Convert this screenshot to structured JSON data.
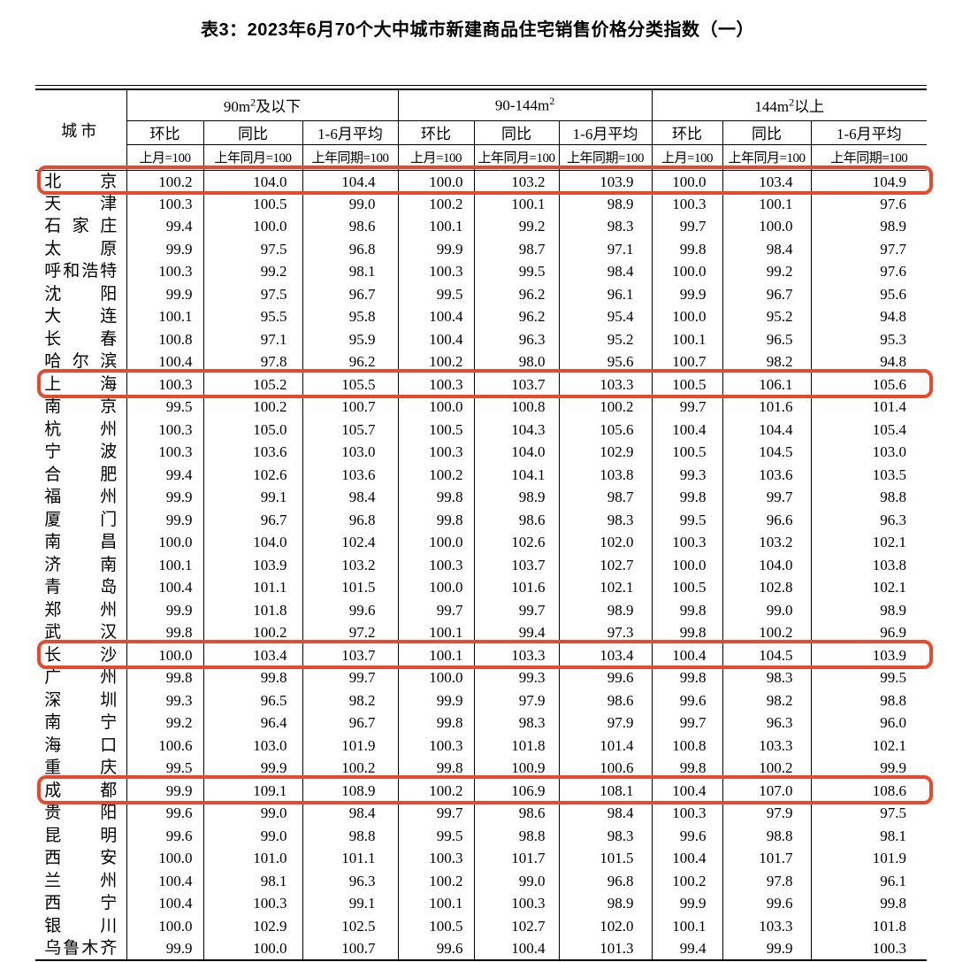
{
  "title": "表3：2023年6月70个大中城市新建商品住宅销售价格分类指数（一）",
  "table": {
    "city_header": "城市",
    "groups": [
      {
        "prefix": "90m",
        "sup": "2",
        "suffix": "及以下"
      },
      {
        "prefix": "90-144m",
        "sup": "2",
        "suffix": ""
      },
      {
        "prefix": "144m",
        "sup": "2",
        "suffix": "以上"
      }
    ],
    "metric_headers": [
      "环比",
      "同比",
      "1-6月平均"
    ],
    "base_headers": [
      "上月=100",
      "上年同月=100",
      "上年同期=100"
    ],
    "highlight_color": "#e5492e",
    "highlighted_cities": [
      "北京",
      "上海",
      "长沙",
      "成都"
    ],
    "rows": [
      {
        "city": "北京",
        "values": [
          "100.2",
          "104.0",
          "104.4",
          "100.0",
          "103.2",
          "103.9",
          "100.0",
          "103.4",
          "104.9"
        ]
      },
      {
        "city": "天津",
        "values": [
          "100.3",
          "100.5",
          "99.0",
          "100.2",
          "100.1",
          "98.9",
          "100.3",
          "100.1",
          "97.6"
        ]
      },
      {
        "city": "石家庄",
        "values": [
          "99.4",
          "100.0",
          "98.6",
          "100.1",
          "99.2",
          "98.3",
          "99.7",
          "100.0",
          "98.9"
        ]
      },
      {
        "city": "太原",
        "values": [
          "99.9",
          "97.5",
          "96.8",
          "99.9",
          "98.7",
          "97.1",
          "99.8",
          "98.4",
          "97.7"
        ]
      },
      {
        "city": "呼和浩特",
        "values": [
          "100.3",
          "99.2",
          "98.1",
          "100.3",
          "99.5",
          "98.4",
          "100.0",
          "99.2",
          "97.6"
        ]
      },
      {
        "city": "沈阳",
        "values": [
          "99.9",
          "97.5",
          "96.7",
          "99.5",
          "96.2",
          "96.1",
          "99.9",
          "96.7",
          "95.6"
        ]
      },
      {
        "city": "大连",
        "values": [
          "100.1",
          "95.5",
          "95.8",
          "100.4",
          "96.2",
          "95.4",
          "100.0",
          "95.2",
          "94.8"
        ]
      },
      {
        "city": "长春",
        "values": [
          "100.8",
          "97.1",
          "95.9",
          "100.4",
          "96.3",
          "95.2",
          "100.1",
          "96.5",
          "95.3"
        ]
      },
      {
        "city": "哈尔滨",
        "values": [
          "100.4",
          "97.8",
          "96.2",
          "100.2",
          "98.0",
          "95.6",
          "100.7",
          "98.2",
          "94.8"
        ]
      },
      {
        "city": "上海",
        "values": [
          "100.3",
          "105.2",
          "105.5",
          "100.3",
          "103.7",
          "103.3",
          "100.5",
          "106.1",
          "105.6"
        ]
      },
      {
        "city": "南京",
        "values": [
          "99.5",
          "100.2",
          "100.7",
          "100.0",
          "100.8",
          "100.2",
          "99.7",
          "101.6",
          "101.4"
        ]
      },
      {
        "city": "杭州",
        "values": [
          "100.3",
          "105.0",
          "105.7",
          "100.5",
          "104.3",
          "105.6",
          "100.4",
          "104.4",
          "105.4"
        ]
      },
      {
        "city": "宁波",
        "values": [
          "100.3",
          "103.6",
          "103.0",
          "100.3",
          "104.0",
          "102.9",
          "100.5",
          "104.5",
          "103.0"
        ]
      },
      {
        "city": "合肥",
        "values": [
          "99.4",
          "102.6",
          "103.6",
          "100.2",
          "104.1",
          "103.8",
          "99.3",
          "103.6",
          "103.5"
        ]
      },
      {
        "city": "福州",
        "values": [
          "99.9",
          "99.1",
          "98.4",
          "99.8",
          "98.9",
          "98.7",
          "99.8",
          "99.7",
          "98.8"
        ]
      },
      {
        "city": "厦门",
        "values": [
          "99.9",
          "96.7",
          "96.8",
          "99.8",
          "98.6",
          "98.3",
          "99.5",
          "96.6",
          "96.3"
        ]
      },
      {
        "city": "南昌",
        "values": [
          "100.0",
          "104.0",
          "102.4",
          "100.0",
          "102.6",
          "102.0",
          "100.3",
          "103.2",
          "102.1"
        ]
      },
      {
        "city": "济南",
        "values": [
          "100.1",
          "103.9",
          "103.2",
          "100.3",
          "103.7",
          "102.7",
          "100.0",
          "104.0",
          "103.8"
        ]
      },
      {
        "city": "青岛",
        "values": [
          "100.4",
          "101.1",
          "101.5",
          "100.0",
          "101.6",
          "102.1",
          "100.5",
          "102.8",
          "102.1"
        ]
      },
      {
        "city": "郑州",
        "values": [
          "99.9",
          "101.8",
          "99.6",
          "99.7",
          "99.7",
          "98.9",
          "99.8",
          "99.0",
          "98.9"
        ]
      },
      {
        "city": "武汉",
        "values": [
          "99.8",
          "100.2",
          "97.2",
          "100.1",
          "99.4",
          "97.3",
          "99.8",
          "100.2",
          "96.9"
        ]
      },
      {
        "city": "长沙",
        "values": [
          "100.0",
          "103.4",
          "103.7",
          "100.1",
          "103.3",
          "103.4",
          "100.4",
          "104.5",
          "103.9"
        ]
      },
      {
        "city": "广州",
        "values": [
          "99.8",
          "99.8",
          "99.7",
          "100.0",
          "99.3",
          "99.6",
          "99.8",
          "98.3",
          "99.5"
        ]
      },
      {
        "city": "深圳",
        "values": [
          "99.3",
          "96.5",
          "98.2",
          "99.9",
          "97.9",
          "98.6",
          "99.6",
          "98.2",
          "98.8"
        ]
      },
      {
        "city": "南宁",
        "values": [
          "99.2",
          "96.4",
          "96.7",
          "99.8",
          "98.3",
          "97.9",
          "99.7",
          "96.3",
          "96.0"
        ]
      },
      {
        "city": "海口",
        "values": [
          "100.6",
          "103.0",
          "101.9",
          "100.3",
          "101.8",
          "101.4",
          "100.8",
          "103.3",
          "102.1"
        ]
      },
      {
        "city": "重庆",
        "values": [
          "99.5",
          "99.9",
          "100.2",
          "99.8",
          "100.9",
          "100.6",
          "99.8",
          "100.2",
          "99.9"
        ]
      },
      {
        "city": "成都",
        "values": [
          "99.9",
          "109.1",
          "108.9",
          "100.2",
          "106.9",
          "108.1",
          "100.4",
          "107.0",
          "108.6"
        ]
      },
      {
        "city": "贵阳",
        "values": [
          "99.6",
          "99.0",
          "98.4",
          "99.7",
          "98.6",
          "98.4",
          "100.3",
          "97.9",
          "97.5"
        ]
      },
      {
        "city": "昆明",
        "values": [
          "99.6",
          "99.0",
          "98.8",
          "99.5",
          "98.8",
          "98.3",
          "99.6",
          "98.8",
          "98.1"
        ]
      },
      {
        "city": "西安",
        "values": [
          "100.0",
          "101.0",
          "101.1",
          "100.3",
          "101.7",
          "101.5",
          "100.4",
          "101.7",
          "101.9"
        ]
      },
      {
        "city": "兰州",
        "values": [
          "100.4",
          "98.1",
          "96.3",
          "100.2",
          "99.0",
          "96.8",
          "100.2",
          "97.8",
          "96.1"
        ]
      },
      {
        "city": "西宁",
        "values": [
          "100.4",
          "100.3",
          "99.1",
          "100.1",
          "100.3",
          "98.9",
          "99.9",
          "99.6",
          "99.8"
        ]
      },
      {
        "city": "银川",
        "values": [
          "100.0",
          "102.9",
          "102.5",
          "100.5",
          "102.7",
          "102.0",
          "100.1",
          "103.3",
          "101.8"
        ]
      },
      {
        "city": "乌鲁木齐",
        "values": [
          "99.9",
          "100.0",
          "100.7",
          "99.6",
          "100.4",
          "101.3",
          "99.4",
          "99.9",
          "100.3"
        ]
      }
    ]
  }
}
